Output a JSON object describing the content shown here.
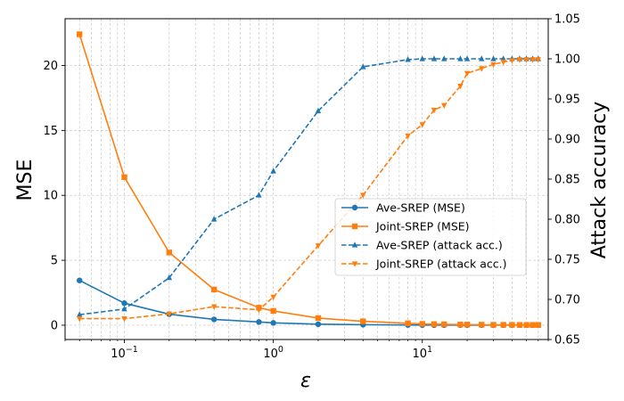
{
  "chart_data": {
    "type": "line",
    "title": "",
    "xlabel": "ε",
    "ylabel": "MSE",
    "y2label": "Attack accuracy",
    "xscale": "log",
    "xlim": [
      0.04,
      70
    ],
    "ylim": [
      -1.1,
      23.6
    ],
    "y2lim": [
      0.65,
      1.05
    ],
    "grid": "both-major-minor",
    "legend_position": "center-right",
    "x_tick_labels": [
      {
        "value": 0.1,
        "base": "10",
        "exp": "−1"
      },
      {
        "value": 1,
        "base": "10",
        "exp": "0"
      },
      {
        "value": 10,
        "base": "10",
        "exp": "1"
      }
    ],
    "y_ticks": [
      0,
      5,
      10,
      15,
      20
    ],
    "y2_ticks": [
      "0.65",
      "0.70",
      "0.75",
      "0.80",
      "0.85",
      "0.90",
      "0.95",
      "1.00",
      "1.05"
    ],
    "series": [
      {
        "name": "Ave-SREP (MSE)",
        "axis": "left",
        "color": "#1f77b4",
        "style": "solid",
        "marker": "circle",
        "x": [
          0.05,
          0.1,
          0.2,
          0.4,
          0.8,
          1,
          2,
          4,
          8,
          10,
          12,
          14,
          18,
          20,
          25,
          30,
          35,
          40,
          45,
          50,
          55,
          60
        ],
        "y": [
          3.45,
          1.7,
          0.85,
          0.45,
          0.25,
          0.18,
          0.08,
          0.04,
          0.02,
          0.01,
          0.01,
          0.01,
          0.01,
          0.01,
          0.01,
          0.01,
          0.01,
          0.01,
          0.01,
          0.01,
          0.01,
          0.01
        ]
      },
      {
        "name": "Joint-SREP (MSE)",
        "axis": "left",
        "color": "#ff7f0e",
        "style": "solid",
        "marker": "square",
        "x": [
          0.05,
          0.1,
          0.2,
          0.4,
          0.8,
          1,
          2,
          4,
          8,
          10,
          12,
          14,
          18,
          20,
          25,
          30,
          35,
          40,
          45,
          50,
          55,
          60
        ],
        "y": [
          22.4,
          11.4,
          5.6,
          2.75,
          1.35,
          1.1,
          0.55,
          0.3,
          0.15,
          0.1,
          0.08,
          0.07,
          0.05,
          0.05,
          0.04,
          0.03,
          0.03,
          0.03,
          0.02,
          0.02,
          0.02,
          0.02
        ]
      },
      {
        "name": "Ave-SREP (attack acc.)",
        "axis": "right",
        "color": "#1f77b4",
        "style": "dashed",
        "marker": "triangle-up",
        "x": [
          0.05,
          0.1,
          0.2,
          0.4,
          0.8,
          1,
          2,
          4,
          8,
          10,
          12,
          14,
          18,
          20,
          25,
          30,
          35,
          40,
          45,
          50,
          55,
          60
        ],
        "y": [
          0.681,
          0.688,
          0.727,
          0.8,
          0.83,
          0.86,
          0.935,
          0.99,
          0.999,
          1.0,
          1.0,
          1.0,
          1.0,
          1.0,
          1.0,
          1.0,
          1.0,
          1.0,
          1.0,
          1.0,
          1.0,
          1.0
        ]
      },
      {
        "name": "Joint-SREP (attack acc.)",
        "axis": "right",
        "color": "#ff7f0e",
        "style": "dashed",
        "marker": "triangle-down",
        "x": [
          0.05,
          0.1,
          0.2,
          0.4,
          0.8,
          1,
          2,
          4,
          8,
          10,
          12,
          14,
          18,
          20,
          25,
          30,
          35,
          40,
          45,
          50,
          55,
          60
        ],
        "y": [
          0.676,
          0.676,
          0.682,
          0.691,
          0.687,
          0.703,
          0.767,
          0.83,
          0.904,
          0.918,
          0.936,
          0.942,
          0.966,
          0.982,
          0.988,
          0.993,
          0.996,
          0.998,
          0.999,
          0.999,
          0.999,
          0.999
        ]
      }
    ]
  }
}
